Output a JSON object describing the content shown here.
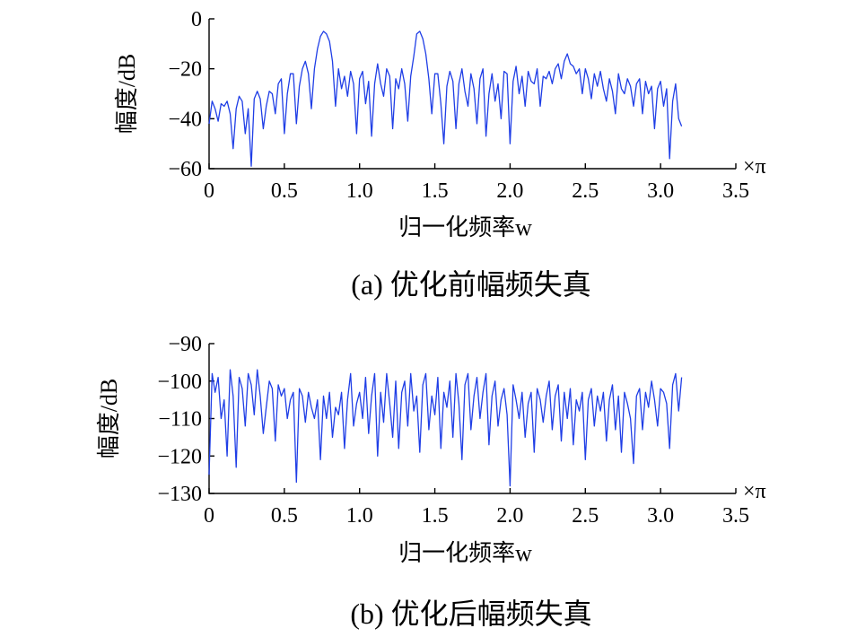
{
  "chart_data": [
    {
      "type": "line",
      "caption": "(a) 优化前幅频失真",
      "xlabel": "归一化频率w",
      "ylabel": "幅度/dB",
      "x_unit": "×π",
      "xlim": [
        0,
        3.5
      ],
      "ylim": [
        -60,
        0
      ],
      "xticks": [
        "0",
        "0.5",
        "1.0",
        "1.5",
        "2.0",
        "2.5",
        "3.0",
        "3.5"
      ],
      "yticks": [
        "0",
        "−20",
        "−40",
        "−60"
      ],
      "grid": false,
      "series": [
        {
          "color": "#1f3ee6",
          "x": [
            0,
            0.02,
            0.04,
            0.06,
            0.08,
            0.1,
            0.12,
            0.14,
            0.16,
            0.18,
            0.2,
            0.22,
            0.24,
            0.26,
            0.28,
            0.3,
            0.32,
            0.34,
            0.36,
            0.38,
            0.4,
            0.42,
            0.44,
            0.46,
            0.48,
            0.5,
            0.52,
            0.54,
            0.56,
            0.58,
            0.6,
            0.62,
            0.64,
            0.66,
            0.68,
            0.7,
            0.72,
            0.74,
            0.76,
            0.78,
            0.8,
            0.82,
            0.84,
            0.86,
            0.88,
            0.9,
            0.92,
            0.94,
            0.96,
            0.98,
            1.0,
            1.02,
            1.04,
            1.06,
            1.08,
            1.1,
            1.12,
            1.14,
            1.16,
            1.18,
            1.2,
            1.22,
            1.24,
            1.26,
            1.28,
            1.3,
            1.32,
            1.34,
            1.36,
            1.38,
            1.4,
            1.42,
            1.44,
            1.46,
            1.48,
            1.5,
            1.52,
            1.54,
            1.56,
            1.58,
            1.6,
            1.62,
            1.64,
            1.66,
            1.68,
            1.7,
            1.72,
            1.74,
            1.76,
            1.78,
            1.8,
            1.82,
            1.84,
            1.86,
            1.88,
            1.9,
            1.92,
            1.94,
            1.96,
            1.98,
            2.0,
            2.02,
            2.04,
            2.06,
            2.08,
            2.1,
            2.12,
            2.14,
            2.16,
            2.18,
            2.2,
            2.22,
            2.24,
            2.26,
            2.28,
            2.3,
            2.32,
            2.34,
            2.36,
            2.38,
            2.4,
            2.42,
            2.44,
            2.46,
            2.48,
            2.5,
            2.52,
            2.54,
            2.56,
            2.58,
            2.6,
            2.62,
            2.64,
            2.66,
            2.68,
            2.7,
            2.72,
            2.74,
            2.76,
            2.78,
            2.8,
            2.82,
            2.84,
            2.86,
            2.88,
            2.9,
            2.92,
            2.94,
            2.96,
            2.98,
            3.0,
            3.02,
            3.04,
            3.06,
            3.08,
            3.1,
            3.12,
            3.14
          ],
          "y": [
            -42,
            -33,
            -36,
            -41,
            -34,
            -35,
            -33,
            -38,
            -52,
            -36,
            -31,
            -33,
            -46,
            -36,
            -59,
            -32,
            -29,
            -32,
            -44,
            -35,
            -29,
            -30,
            -38,
            -26,
            -24,
            -46,
            -30,
            -22,
            -22,
            -42,
            -27,
            -20,
            -17,
            -22,
            -36,
            -20,
            -12,
            -7,
            -5,
            -6,
            -9,
            -17,
            -35,
            -20,
            -28,
            -23,
            -31,
            -21,
            -26,
            -46,
            -24,
            -21,
            -34,
            -25,
            -47,
            -26,
            -18,
            -26,
            -31,
            -20,
            -23,
            -44,
            -24,
            -28,
            -20,
            -26,
            -41,
            -23,
            -15,
            -6,
            -5,
            -8,
            -14,
            -24,
            -38,
            -22,
            -22,
            -34,
            -50,
            -27,
            -21,
            -25,
            -44,
            -26,
            -20,
            -29,
            -35,
            -22,
            -28,
            -42,
            -24,
            -20,
            -47,
            -30,
            -22,
            -33,
            -26,
            -40,
            -21,
            -22,
            -50,
            -25,
            -19,
            -30,
            -23,
            -35,
            -21,
            -25,
            -26,
            -20,
            -35,
            -23,
            -24,
            -21,
            -26,
            -20,
            -18,
            -24,
            -17,
            -14,
            -18,
            -19,
            -22,
            -20,
            -30,
            -20,
            -24,
            -32,
            -22,
            -27,
            -21,
            -28,
            -33,
            -24,
            -29,
            -38,
            -22,
            -28,
            -30,
            -24,
            -27,
            -35,
            -26,
            -24,
            -38,
            -25,
            -30,
            -27,
            -44,
            -28,
            -25,
            -35,
            -28,
            -56,
            -33,
            -26,
            -40,
            -43
          ]
        }
      ]
    },
    {
      "type": "line",
      "caption": "(b) 优化后幅频失真",
      "xlabel": "归一化频率w",
      "ylabel": "幅度/dB",
      "x_unit": "×π",
      "xlim": [
        0,
        3.5
      ],
      "ylim": [
        -130,
        -90
      ],
      "xticks": [
        "0",
        "0.5",
        "1.0",
        "1.5",
        "2.0",
        "2.5",
        "3.0",
        "3.5"
      ],
      "yticks": [
        "−90",
        "−100",
        "−110",
        "−120",
        "−130"
      ],
      "grid": false,
      "series": [
        {
          "color": "#1f3ee6",
          "x": [
            0,
            0.02,
            0.04,
            0.06,
            0.08,
            0.1,
            0.12,
            0.14,
            0.16,
            0.18,
            0.2,
            0.22,
            0.24,
            0.26,
            0.28,
            0.3,
            0.32,
            0.34,
            0.36,
            0.38,
            0.4,
            0.42,
            0.44,
            0.46,
            0.48,
            0.5,
            0.52,
            0.54,
            0.56,
            0.58,
            0.6,
            0.62,
            0.64,
            0.66,
            0.68,
            0.7,
            0.72,
            0.74,
            0.76,
            0.78,
            0.8,
            0.82,
            0.84,
            0.86,
            0.88,
            0.9,
            0.92,
            0.94,
            0.96,
            0.98,
            1.0,
            1.02,
            1.04,
            1.06,
            1.08,
            1.1,
            1.12,
            1.14,
            1.16,
            1.18,
            1.2,
            1.22,
            1.24,
            1.26,
            1.28,
            1.3,
            1.32,
            1.34,
            1.36,
            1.38,
            1.4,
            1.42,
            1.44,
            1.46,
            1.48,
            1.5,
            1.52,
            1.54,
            1.56,
            1.58,
            1.6,
            1.62,
            1.64,
            1.66,
            1.68,
            1.7,
            1.72,
            1.74,
            1.76,
            1.78,
            1.8,
            1.82,
            1.84,
            1.86,
            1.88,
            1.9,
            1.92,
            1.94,
            1.96,
            1.98,
            2.0,
            2.02,
            2.04,
            2.06,
            2.08,
            2.1,
            2.12,
            2.14,
            2.16,
            2.18,
            2.2,
            2.22,
            2.24,
            2.26,
            2.28,
            2.3,
            2.32,
            2.34,
            2.36,
            2.38,
            2.4,
            2.42,
            2.44,
            2.46,
            2.48,
            2.5,
            2.52,
            2.54,
            2.56,
            2.58,
            2.6,
            2.62,
            2.64,
            2.66,
            2.68,
            2.7,
            2.72,
            2.74,
            2.76,
            2.78,
            2.8,
            2.82,
            2.84,
            2.86,
            2.88,
            2.9,
            2.92,
            2.94,
            2.96,
            2.98,
            3.0,
            3.02,
            3.04,
            3.06,
            3.08,
            3.1,
            3.12,
            3.14
          ],
          "y": [
            -125,
            -98,
            -103,
            -99,
            -110,
            -105,
            -120,
            -97,
            -104,
            -123,
            -99,
            -102,
            -112,
            -98,
            -101,
            -109,
            -97,
            -104,
            -114,
            -107,
            -100,
            -102,
            -116,
            -101,
            -104,
            -102,
            -110,
            -105,
            -103,
            -127,
            -102,
            -104,
            -111,
            -103,
            -107,
            -110,
            -105,
            -121,
            -104,
            -110,
            -103,
            -115,
            -107,
            -109,
            -103,
            -118,
            -105,
            -98,
            -112,
            -106,
            -103,
            -110,
            -99,
            -114,
            -104,
            -98,
            -120,
            -103,
            -111,
            -98,
            -106,
            -115,
            -100,
            -118,
            -103,
            -100,
            -112,
            -98,
            -108,
            -104,
            -119,
            -101,
            -98,
            -113,
            -104,
            -109,
            -99,
            -118,
            -103,
            -107,
            -100,
            -115,
            -98,
            -106,
            -121,
            -101,
            -98,
            -113,
            -104,
            -99,
            -110,
            -103,
            -98,
            -117,
            -104,
            -100,
            -112,
            -105,
            -102,
            -109,
            -128,
            -101,
            -105,
            -110,
            -103,
            -115,
            -106,
            -103,
            -119,
            -102,
            -105,
            -111,
            -104,
            -100,
            -113,
            -104,
            -101,
            -116,
            -103,
            -110,
            -102,
            -117,
            -105,
            -108,
            -103,
            -121,
            -105,
            -102,
            -112,
            -104,
            -108,
            -103,
            -116,
            -105,
            -101,
            -113,
            -104,
            -119,
            -103,
            -106,
            -110,
            -122,
            -104,
            -102,
            -113,
            -103,
            -107,
            -100,
            -105,
            -112,
            -102,
            -103,
            -106,
            -118,
            -101,
            -98,
            -108,
            -99
          ]
        }
      ]
    }
  ]
}
